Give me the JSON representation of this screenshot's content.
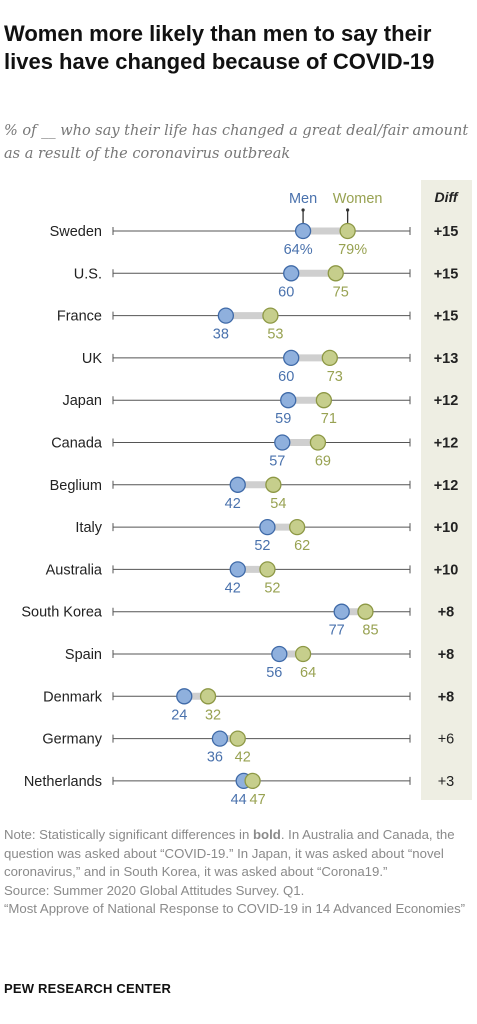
{
  "title": "Women more likely than men to say their lives have changed because of COVID-19",
  "subtitle": "% of __ who say their life has changed a great deal/fair amount as a result of the coronavirus outbreak",
  "colors": {
    "men": "#8fb0dd",
    "men_stroke": "#3f6aa8",
    "men_text": "#4a72ad",
    "women": "#c6ce8c",
    "women_stroke": "#8d9845",
    "women_text": "#98a252",
    "diff_bg": "#eeeee3",
    "connector": "#cfcfcf"
  },
  "chart_data": {
    "type": "dot",
    "legend": {
      "men": "Men",
      "women": "Women"
    },
    "diff_header": "Diff",
    "xlim": [
      0,
      100
    ],
    "rows": [
      {
        "country": "Sweden",
        "men": 64,
        "women": 79,
        "men_label": "64%",
        "women_label": "79%",
        "diff": "+15",
        "significant": true
      },
      {
        "country": "U.S.",
        "men": 60,
        "women": 75,
        "men_label": "60",
        "women_label": "75",
        "diff": "+15",
        "significant": true
      },
      {
        "country": "France",
        "men": 38,
        "women": 53,
        "men_label": "38",
        "women_label": "53",
        "diff": "+15",
        "significant": true
      },
      {
        "country": "UK",
        "men": 60,
        "women": 73,
        "men_label": "60",
        "women_label": "73",
        "diff": "+13",
        "significant": true
      },
      {
        "country": "Japan",
        "men": 59,
        "women": 71,
        "men_label": "59",
        "women_label": "71",
        "diff": "+12",
        "significant": true
      },
      {
        "country": "Canada",
        "men": 57,
        "women": 69,
        "men_label": "57",
        "women_label": "69",
        "diff": "+12",
        "significant": true
      },
      {
        "country": "Beglium",
        "men": 42,
        "women": 54,
        "men_label": "42",
        "women_label": "54",
        "diff": "+12",
        "significant": true
      },
      {
        "country": "Italy",
        "men": 52,
        "women": 62,
        "men_label": "52",
        "women_label": "62",
        "diff": "+10",
        "significant": true
      },
      {
        "country": "Australia",
        "men": 42,
        "women": 52,
        "men_label": "42",
        "women_label": "52",
        "diff": "+10",
        "significant": true
      },
      {
        "country": "South Korea",
        "men": 77,
        "women": 85,
        "men_label": "77",
        "women_label": "85",
        "diff": "+8",
        "significant": true
      },
      {
        "country": "Spain",
        "men": 56,
        "women": 64,
        "men_label": "56",
        "women_label": "64",
        "diff": "+8",
        "significant": true
      },
      {
        "country": "Denmark",
        "men": 24,
        "women": 32,
        "men_label": "24",
        "women_label": "32",
        "diff": "+8",
        "significant": true
      },
      {
        "country": "Germany",
        "men": 36,
        "women": 42,
        "men_label": "36",
        "women_label": "42",
        "diff": "+6",
        "significant": false
      },
      {
        "country": "Netherlands",
        "men": 44,
        "women": 47,
        "men_label": "44",
        "women_label": "47",
        "diff": "+3",
        "significant": false
      }
    ]
  },
  "note": {
    "line_prefix": "Note: Statistically significant differences in ",
    "bold_word": "bold",
    "line_rest": ". In Australia and Canada, the question was asked about “COVID-19.” In Japan, it was asked about “novel coronavirus,” and in South Korea, it was asked about “Corona19.”",
    "source": "Source: Summer 2020 Global Attitudes Survey. Q1.",
    "report": "“Most Approve of National Response to COVID-19 in 14 Advanced Economies”"
  },
  "footer": "PEW RESEARCH CENTER"
}
